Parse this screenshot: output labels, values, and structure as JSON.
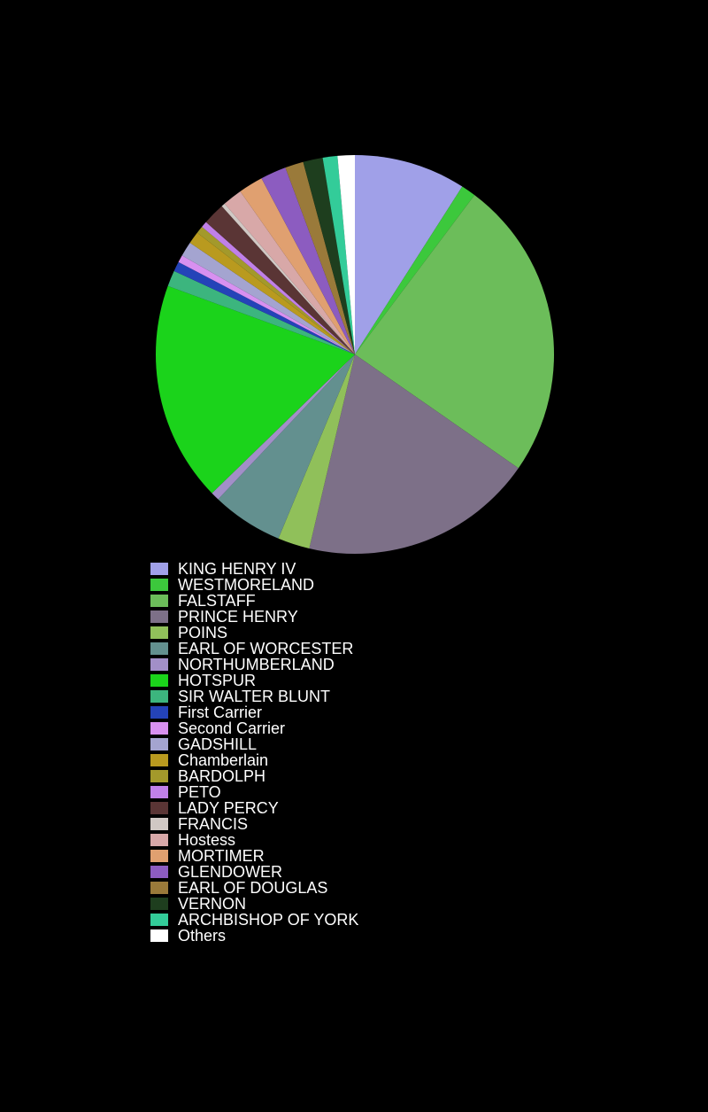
{
  "chart_data": {
    "type": "pie",
    "title": "",
    "start_angle_deg": 270,
    "direction": "clockwise",
    "legend_position": "bottom",
    "slices": [
      {
        "label": "KING HENRY IV",
        "value": 9.1,
        "color": "#a0a0e8"
      },
      {
        "label": "WESTMORELAND",
        "value": 1.2,
        "color": "#3cc83c"
      },
      {
        "label": "FALSTAFF",
        "value": 24.5,
        "color": "#6cbd5a"
      },
      {
        "label": "PRINCE HENRY",
        "value": 19.1,
        "color": "#7d7088"
      },
      {
        "label": "POINS",
        "value": 2.6,
        "color": "#90c05a"
      },
      {
        "label": "EARL OF WORCESTER",
        "value": 5.8,
        "color": "#63908f"
      },
      {
        "label": "NORTHUMBERLAND",
        "value": 0.7,
        "color": "#a28fc8"
      },
      {
        "label": "HOTSPUR",
        "value": 17.9,
        "color": "#1bd31b"
      },
      {
        "label": "SIR WALTER BLUNT",
        "value": 1.3,
        "color": "#3cb57e"
      },
      {
        "label": "First Carrier",
        "value": 0.8,
        "color": "#2443b8"
      },
      {
        "label": "Second Carrier",
        "value": 0.6,
        "color": "#d890f0"
      },
      {
        "label": "GADSHILL",
        "value": 1.2,
        "color": "#a4a4d0"
      },
      {
        "label": "Chamberlain",
        "value": 1.0,
        "color": "#b99a1f"
      },
      {
        "label": "BARDOLPH",
        "value": 0.6,
        "color": "#a3992b"
      },
      {
        "label": "PETO",
        "value": 0.5,
        "color": "#c080e8"
      },
      {
        "label": "LADY PERCY",
        "value": 1.8,
        "color": "#5a3535"
      },
      {
        "label": "FRANCIS",
        "value": 0.3,
        "color": "#d0c8c4"
      },
      {
        "label": "Hostess",
        "value": 1.6,
        "color": "#d8a8a8"
      },
      {
        "label": "MORTIMER",
        "value": 2.0,
        "color": "#e0a070"
      },
      {
        "label": "GLENDOWER",
        "value": 2.1,
        "color": "#8c5cc0"
      },
      {
        "label": "EARL OF DOUGLAS",
        "value": 1.5,
        "color": "#9a7a3a"
      },
      {
        "label": "VERNON",
        "value": 1.6,
        "color": "#1e3e1e"
      },
      {
        "label": "ARCHBISHOP OF YORK",
        "value": 1.2,
        "color": "#33cc99"
      },
      {
        "label": "Others",
        "value": 1.4,
        "color": "#ffffff"
      }
    ]
  }
}
